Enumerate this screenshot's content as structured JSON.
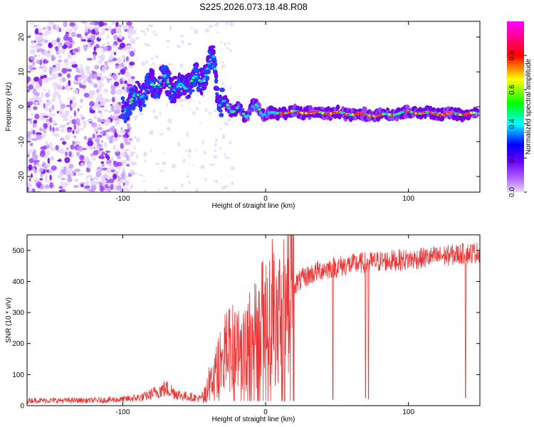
{
  "title": "S225.2026.073.18.48.R08",
  "chart_data": [
    {
      "type": "heatmap",
      "xlabel": "Height of straight line (km)",
      "ylabel": "Frequency (Hz)",
      "xlim": [
        -167,
        150
      ],
      "ylim": [
        -24.5,
        24.5
      ],
      "x_ticks": [
        -100,
        0,
        100
      ],
      "y_ticks": [
        20,
        10,
        0,
        -10,
        -20
      ],
      "colorbar": {
        "label": "Normalized spectral amplitude",
        "range": [
          0,
          1
        ],
        "ticks": [
          0.0,
          0.2,
          0.4,
          0.6,
          0.8
        ],
        "colors": [
          "#e8dcff",
          "#7a00ff",
          "#0000ff",
          "#00ffff",
          "#00ff00",
          "#ffff00",
          "#ff0000",
          "#ff00ff"
        ]
      },
      "ridge": {
        "description_points": [
          {
            "x": -100,
            "y": -0.5
          },
          {
            "x": -90,
            "y": 3
          },
          {
            "x": -80,
            "y": 6
          },
          {
            "x": -72,
            "y": 8
          },
          {
            "x": -62,
            "y": 5
          },
          {
            "x": -52,
            "y": 7
          },
          {
            "x": -42,
            "y": 9
          },
          {
            "x": -36,
            "y": 15
          },
          {
            "x": -33,
            "y": 1
          },
          {
            "x": -25,
            "y": 0
          },
          {
            "x": -15,
            "y": -2
          },
          {
            "x": -5,
            "y": 0
          },
          {
            "x": 0,
            "y": -2
          },
          {
            "x": 20,
            "y": -1.5
          },
          {
            "x": 50,
            "y": -1.8
          },
          {
            "x": 80,
            "y": -2.5
          },
          {
            "x": 100,
            "y": -1.5
          },
          {
            "x": 120,
            "y": -2
          },
          {
            "x": 148,
            "y": -2
          }
        ]
      }
    },
    {
      "type": "line",
      "xlabel": "Height of straight line (km)",
      "ylabel": "SNR (10 * v/v)",
      "xlim": [
        -167,
        150
      ],
      "ylim": [
        0,
        550
      ],
      "x_ticks": [
        -100,
        0,
        100
      ],
      "y_ticks": [
        0,
        100,
        200,
        300,
        400,
        500
      ],
      "series": [
        {
          "name": "SNR",
          "color": "#ee3333",
          "trend": [
            {
              "x": -167,
              "y": 15
            },
            {
              "x": -120,
              "y": 15
            },
            {
              "x": -100,
              "y": 18
            },
            {
              "x": -85,
              "y": 25
            },
            {
              "x": -70,
              "y": 50
            },
            {
              "x": -60,
              "y": 30
            },
            {
              "x": -45,
              "y": 20
            },
            {
              "x": -38,
              "y": 80
            },
            {
              "x": -30,
              "y": 150
            },
            {
              "x": -20,
              "y": 180
            },
            {
              "x": -10,
              "y": 220
            },
            {
              "x": 0,
              "y": 250
            },
            {
              "x": 10,
              "y": 320
            },
            {
              "x": 20,
              "y": 390
            },
            {
              "x": 30,
              "y": 420
            },
            {
              "x": 40,
              "y": 440
            },
            {
              "x": 60,
              "y": 455
            },
            {
              "x": 80,
              "y": 465
            },
            {
              "x": 100,
              "y": 470
            },
            {
              "x": 120,
              "y": 480
            },
            {
              "x": 150,
              "y": 495
            }
          ],
          "dropouts": [
            {
              "x": 47,
              "y": 20
            },
            {
              "x": 70,
              "y": 25
            },
            {
              "x": 72,
              "y": 22
            },
            {
              "x": 140,
              "y": 25
            }
          ]
        }
      ]
    }
  ]
}
